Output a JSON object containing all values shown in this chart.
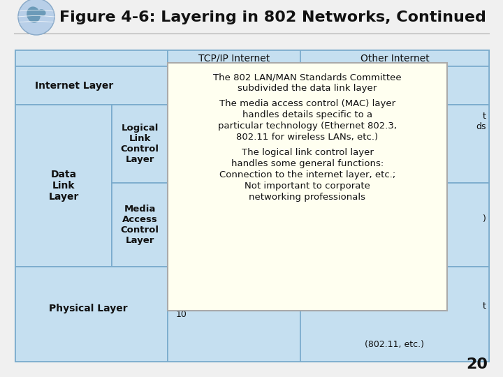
{
  "title": "Figure 4-6: Layering in 802 Networks, Continued",
  "title_fontsize": 16,
  "title_fontweight": "bold",
  "bg_color": "#f0f0f0",
  "light_blue": "#c5dff0",
  "yellow_bg": "#fffff0",
  "border_color": "#7aabcc",
  "page_number": "20",
  "popup_text_line1": "The 802 LAN/MAN Standards Committee",
  "popup_text_line2": "subdivided the data link layer",
  "popup_text_line3": "The media access control (MAC) layer",
  "popup_text_line4": "handles details specific to a",
  "popup_text_line5": "particular technology (Ethernet 802.3,",
  "popup_text_line6": "802.11 for wireless LANs, etc.)",
  "popup_text_line7": "The logical link control layer",
  "popup_text_line8": "handles some general functions:",
  "popup_text_line9": "Connection to the internet layer, etc.;",
  "popup_text_line10": "Not important to corporate",
  "popup_text_line11": "networking professionals",
  "col_header1": "TCP/IP Internet",
  "col_header2": "Other Internet",
  "label_internet": "Internet Layer",
  "label_data": "Data\nLink\nLayer",
  "label_llc": "Logical\nLink\nControl\nLayer",
  "label_mac": "Media\nAccess\nControl\nLayer",
  "label_physical": "Physical Layer",
  "tcp_physical": "10",
  "other_llc_partial1": "t",
  "other_llc_partial2": "ds",
  "other_mac_partial1": ")",
  "other_physical_partial": "t",
  "other_physical_bottom": "(802.11, etc.)"
}
